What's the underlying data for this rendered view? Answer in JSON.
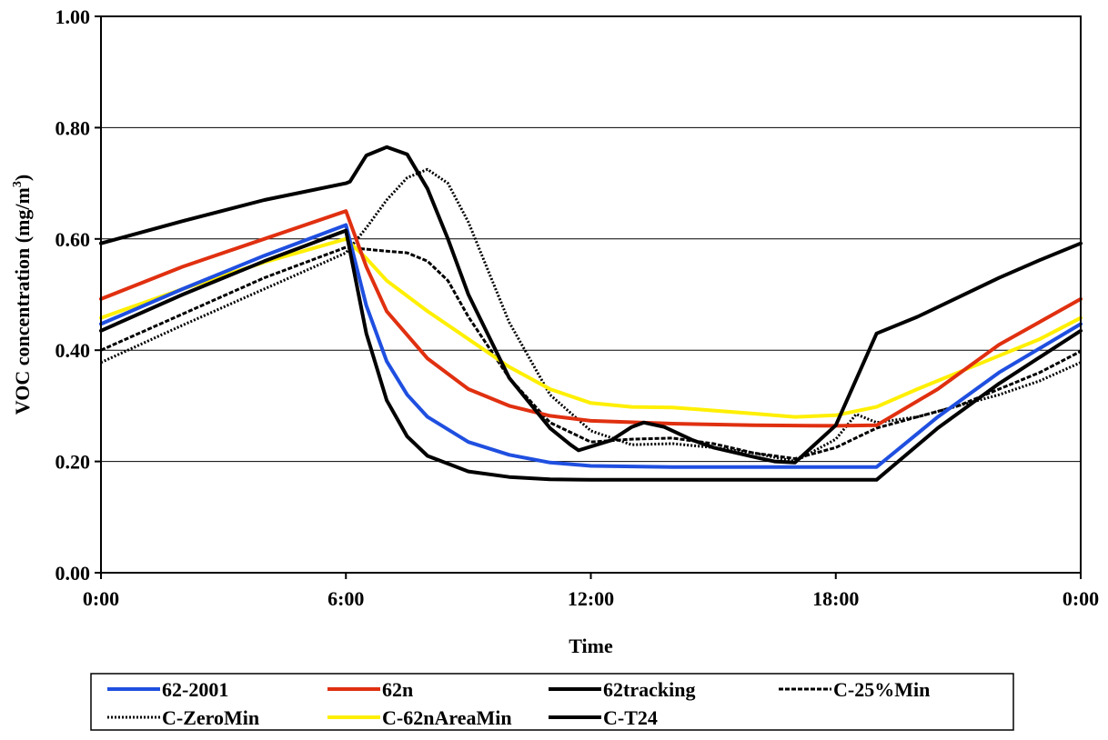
{
  "chart_data": {
    "type": "line",
    "xlabel": "Time",
    "ylabel": "VOC concentration (mg/m",
    "ylabel_sup": "3",
    "ylabel_close": ")",
    "xlim": [
      0,
      24
    ],
    "ylim": [
      0,
      1
    ],
    "x_ticks": [
      {
        "value": 0,
        "label": "0:00"
      },
      {
        "value": 6,
        "label": "6:00"
      },
      {
        "value": 12,
        "label": "12:00"
      },
      {
        "value": 18,
        "label": "18:00"
      },
      {
        "value": 24,
        "label": "0:00"
      }
    ],
    "y_ticks": [
      {
        "value": 0,
        "label": "0.00"
      },
      {
        "value": 0.2,
        "label": "0.20"
      },
      {
        "value": 0.4,
        "label": "0.40"
      },
      {
        "value": 0.6,
        "label": "0.60"
      },
      {
        "value": 0.8,
        "label": "0.80"
      },
      {
        "value": 1.0,
        "label": "1.00"
      }
    ],
    "grid": "horizontal",
    "legend_position": "bottom",
    "series": [
      {
        "name": "62-2001",
        "color": "#1f4fe0",
        "style": "solid",
        "points": [
          [
            0,
            0.447
          ],
          [
            2,
            0.51
          ],
          [
            4,
            0.57
          ],
          [
            6,
            0.625
          ],
          [
            6.5,
            0.48
          ],
          [
            7,
            0.38
          ],
          [
            7.5,
            0.32
          ],
          [
            8,
            0.28
          ],
          [
            9,
            0.235
          ],
          [
            10,
            0.212
          ],
          [
            11,
            0.198
          ],
          [
            12,
            0.192
          ],
          [
            14,
            0.19
          ],
          [
            16,
            0.19
          ],
          [
            19,
            0.19
          ],
          [
            20.5,
            0.28
          ],
          [
            22,
            0.36
          ],
          [
            24,
            0.447
          ]
        ]
      },
      {
        "name": "62n",
        "color": "#e03010",
        "style": "solid",
        "points": [
          [
            0,
            0.492
          ],
          [
            2,
            0.55
          ],
          [
            4,
            0.6
          ],
          [
            6,
            0.65
          ],
          [
            6.5,
            0.55
          ],
          [
            7,
            0.47
          ],
          [
            8,
            0.385
          ],
          [
            9,
            0.33
          ],
          [
            10,
            0.3
          ],
          [
            11,
            0.282
          ],
          [
            12,
            0.273
          ],
          [
            14,
            0.268
          ],
          [
            16,
            0.265
          ],
          [
            18,
            0.264
          ],
          [
            19,
            0.265
          ],
          [
            20.5,
            0.33
          ],
          [
            22,
            0.41
          ],
          [
            24,
            0.492
          ]
        ]
      },
      {
        "name": "62tracking",
        "color": "#000000",
        "style": "solid",
        "points": [
          [
            0,
            0.435
          ],
          [
            2,
            0.5
          ],
          [
            4,
            0.56
          ],
          [
            6,
            0.615
          ],
          [
            6.5,
            0.43
          ],
          [
            7,
            0.31
          ],
          [
            7.5,
            0.245
          ],
          [
            8,
            0.21
          ],
          [
            9,
            0.182
          ],
          [
            10,
            0.172
          ],
          [
            11,
            0.168
          ],
          [
            12,
            0.167
          ],
          [
            14,
            0.167
          ],
          [
            16,
            0.167
          ],
          [
            19,
            0.167
          ],
          [
            20.5,
            0.26
          ],
          [
            22,
            0.34
          ],
          [
            24,
            0.435
          ]
        ]
      },
      {
        "name": "C-25%Min",
        "color": "#000000",
        "style": "dash",
        "points": [
          [
            0,
            0.4
          ],
          [
            2,
            0.465
          ],
          [
            4,
            0.53
          ],
          [
            6,
            0.585
          ],
          [
            7,
            0.578
          ],
          [
            7.5,
            0.575
          ],
          [
            8,
            0.56
          ],
          [
            8.5,
            0.525
          ],
          [
            9,
            0.46
          ],
          [
            10,
            0.35
          ],
          [
            11,
            0.27
          ],
          [
            12,
            0.235
          ],
          [
            13,
            0.24
          ],
          [
            14,
            0.242
          ],
          [
            15,
            0.232
          ],
          [
            16,
            0.215
          ],
          [
            17,
            0.205
          ],
          [
            18,
            0.225
          ],
          [
            19,
            0.26
          ],
          [
            20,
            0.28
          ],
          [
            21,
            0.3
          ],
          [
            22,
            0.33
          ],
          [
            23,
            0.36
          ],
          [
            24,
            0.398
          ]
        ]
      },
      {
        "name": "C-ZeroMin",
        "color": "#000000",
        "style": "dot",
        "points": [
          [
            0,
            0.378
          ],
          [
            2,
            0.445
          ],
          [
            4,
            0.51
          ],
          [
            6,
            0.575
          ],
          [
            6.5,
            0.62
          ],
          [
            7,
            0.67
          ],
          [
            7.5,
            0.71
          ],
          [
            8,
            0.725
          ],
          [
            8.5,
            0.7
          ],
          [
            9,
            0.63
          ],
          [
            10,
            0.45
          ],
          [
            11,
            0.32
          ],
          [
            12,
            0.255
          ],
          [
            13,
            0.23
          ],
          [
            14,
            0.232
          ],
          [
            15,
            0.225
          ],
          [
            16,
            0.215
          ],
          [
            17,
            0.2
          ],
          [
            18,
            0.24
          ],
          [
            18.5,
            0.285
          ],
          [
            19,
            0.27
          ],
          [
            20,
            0.28
          ],
          [
            21,
            0.3
          ],
          [
            22,
            0.32
          ],
          [
            23,
            0.345
          ],
          [
            24,
            0.378
          ]
        ]
      },
      {
        "name": "C-62nAreaMin",
        "color": "#ffef00",
        "style": "solid",
        "points": [
          [
            0,
            0.458
          ],
          [
            2,
            0.51
          ],
          [
            4,
            0.558
          ],
          [
            6,
            0.6
          ],
          [
            6.5,
            0.565
          ],
          [
            7,
            0.525
          ],
          [
            8,
            0.47
          ],
          [
            9,
            0.42
          ],
          [
            10,
            0.37
          ],
          [
            11,
            0.33
          ],
          [
            12,
            0.305
          ],
          [
            13,
            0.298
          ],
          [
            14,
            0.297
          ],
          [
            16,
            0.286
          ],
          [
            17,
            0.28
          ],
          [
            18,
            0.283
          ],
          [
            19,
            0.298
          ],
          [
            20,
            0.33
          ],
          [
            21,
            0.36
          ],
          [
            22,
            0.39
          ],
          [
            23,
            0.42
          ],
          [
            24,
            0.458
          ]
        ]
      },
      {
        "name": "C-T24",
        "color": "#000000",
        "style": "solid",
        "points": [
          [
            0,
            0.592
          ],
          [
            2,
            0.632
          ],
          [
            4,
            0.67
          ],
          [
            6,
            0.7
          ],
          [
            6.1,
            0.703
          ],
          [
            6.5,
            0.75
          ],
          [
            7,
            0.765
          ],
          [
            7.5,
            0.752
          ],
          [
            8,
            0.69
          ],
          [
            8.5,
            0.6
          ],
          [
            9,
            0.5
          ],
          [
            10,
            0.35
          ],
          [
            11,
            0.26
          ],
          [
            11.5,
            0.23
          ],
          [
            11.7,
            0.22
          ],
          [
            12.5,
            0.238
          ],
          [
            13,
            0.262
          ],
          [
            13.3,
            0.27
          ],
          [
            13.8,
            0.262
          ],
          [
            14.5,
            0.238
          ],
          [
            15,
            0.225
          ],
          [
            16,
            0.208
          ],
          [
            16.5,
            0.2
          ],
          [
            17,
            0.198
          ],
          [
            18,
            0.265
          ],
          [
            19,
            0.43
          ],
          [
            20,
            0.46
          ],
          [
            21,
            0.495
          ],
          [
            22,
            0.53
          ],
          [
            23,
            0.562
          ],
          [
            24,
            0.592
          ]
        ]
      }
    ]
  }
}
